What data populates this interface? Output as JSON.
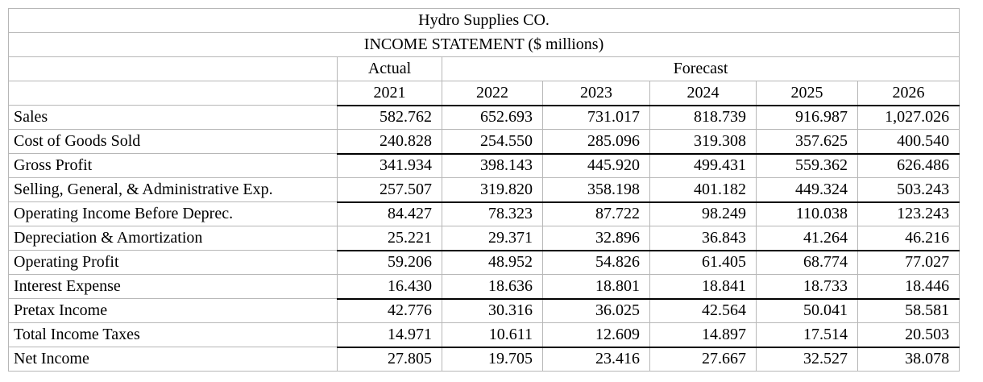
{
  "table": {
    "title": "Hydro Supplies CO.",
    "subtitle": "INCOME STATEMENT ($ millions)",
    "group_headers": {
      "actual": "Actual",
      "forecast": "Forecast"
    },
    "years": [
      "2021",
      "2022",
      "2023",
      "2024",
      "2025",
      "2026"
    ],
    "rows": [
      {
        "label": "Sales",
        "values": [
          "582.762",
          "652.693",
          "731.017",
          "818.739",
          "916.987",
          "1,027.026"
        ],
        "rule_below": false
      },
      {
        "label": "Cost of Goods Sold",
        "values": [
          "240.828",
          "254.550",
          "285.096",
          "319.308",
          "357.625",
          "400.540"
        ],
        "rule_below": true
      },
      {
        "label": "Gross Profit",
        "values": [
          "341.934",
          "398.143",
          "445.920",
          "499.431",
          "559.362",
          "626.486"
        ],
        "rule_below": false
      },
      {
        "label": "Selling, General, & Administrative Exp.",
        "values": [
          "257.507",
          "319.820",
          "358.198",
          "401.182",
          "449.324",
          "503.243"
        ],
        "rule_below": true
      },
      {
        "label": "Operating Income Before Deprec.",
        "values": [
          "84.427",
          "78.323",
          "87.722",
          "98.249",
          "110.038",
          "123.243"
        ],
        "rule_below": false
      },
      {
        "label": "Depreciation & Amortization",
        "values": [
          "25.221",
          "29.371",
          "32.896",
          "36.843",
          "41.264",
          "46.216"
        ],
        "rule_below": true
      },
      {
        "label": "Operating Profit",
        "values": [
          "59.206",
          "48.952",
          "54.826",
          "61.405",
          "68.774",
          "77.027"
        ],
        "rule_below": false
      },
      {
        "label": "Interest Expense",
        "values": [
          "16.430",
          "18.636",
          "18.801",
          "18.841",
          "18.733",
          "18.446"
        ],
        "rule_below": true
      },
      {
        "label": "Pretax Income",
        "values": [
          "42.776",
          "30.316",
          "36.025",
          "42.564",
          "50.041",
          "58.581"
        ],
        "rule_below": false
      },
      {
        "label": "Total Income Taxes",
        "values": [
          "14.971",
          "10.611",
          "12.609",
          "14.897",
          "17.514",
          "20.503"
        ],
        "rule_below": true
      },
      {
        "label": "Net Income",
        "values": [
          "27.805",
          "19.705",
          "23.416",
          "27.667",
          "32.527",
          "38.078"
        ],
        "rule_below": false
      }
    ]
  },
  "colors": {
    "grid": "#b7b7b7",
    "rule": "#000000",
    "text": "#000000",
    "background": "#ffffff"
  }
}
